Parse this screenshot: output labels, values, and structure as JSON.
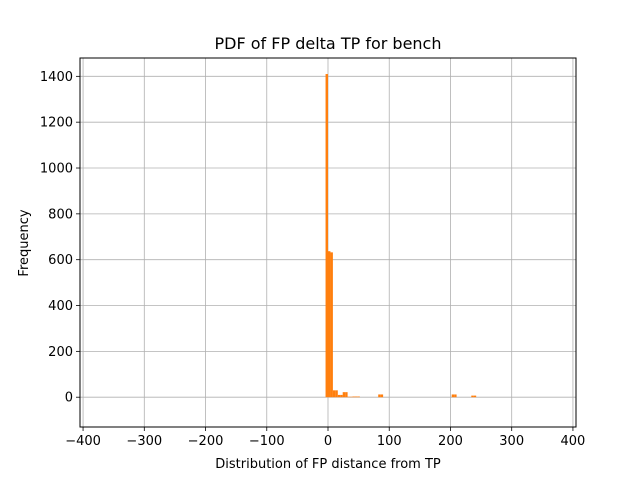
{
  "chart_data": {
    "type": "bar",
    "title": "PDF of FP delta TP for bench",
    "xlabel": "Distribution of FP distance from TP",
    "ylabel": "Frequency",
    "xlim": [
      -405,
      405
    ],
    "ylim": [
      -130,
      1480
    ],
    "xticks": [
      -400,
      -300,
      -200,
      -100,
      0,
      100,
      200,
      300,
      400
    ],
    "xtick_labels": [
      "−400",
      "−300",
      "−200",
      "−100",
      "0",
      "100",
      "200",
      "300",
      "400"
    ],
    "yticks": [
      0,
      200,
      400,
      600,
      800,
      1000,
      1200,
      1400
    ],
    "ytick_labels": [
      "0",
      "200",
      "400",
      "600",
      "800",
      "1000",
      "1200",
      "1400"
    ],
    "grid": true,
    "legend": "none",
    "bar_color": "#ff7f0e",
    "series": [
      {
        "bins": [
          {
            "x0": -4,
            "x1": 0,
            "value": 1410
          },
          {
            "x0": 0,
            "x1": 4,
            "value": 637
          },
          {
            "x0": 4,
            "x1": 8,
            "value": 632
          },
          {
            "x0": 8,
            "x1": 12,
            "value": 30
          },
          {
            "x0": 12,
            "x1": 16,
            "value": 30
          },
          {
            "x0": 16,
            "x1": 20,
            "value": 10
          },
          {
            "x0": 20,
            "x1": 24,
            "value": 10
          },
          {
            "x0": 24,
            "x1": 28,
            "value": 22
          },
          {
            "x0": 28,
            "x1": 32,
            "value": 22
          },
          {
            "x0": 32,
            "x1": 36,
            "value": 2
          },
          {
            "x0": 36,
            "x1": 40,
            "value": 2
          },
          {
            "x0": 40,
            "x1": 44,
            "value": 3
          },
          {
            "x0": 44,
            "x1": 48,
            "value": 3
          },
          {
            "x0": 48,
            "x1": 52,
            "value": 3
          },
          {
            "x0": 82,
            "x1": 86,
            "value": 12
          },
          {
            "x0": 86,
            "x1": 90,
            "value": 12
          },
          {
            "x0": 202,
            "x1": 206,
            "value": 12
          },
          {
            "x0": 206,
            "x1": 210,
            "value": 12
          },
          {
            "x0": 234,
            "x1": 238,
            "value": 7
          },
          {
            "x0": 238,
            "x1": 242,
            "value": 7
          }
        ]
      }
    ]
  }
}
